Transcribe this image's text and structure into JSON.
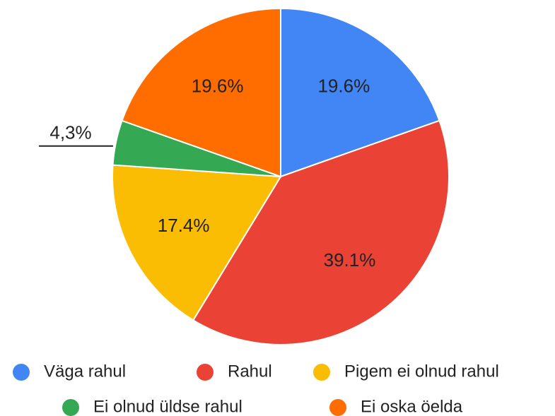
{
  "chart_data": {
    "type": "pie",
    "categories": [
      "Väga rahul",
      "Rahul",
      "Pigem ei olnud rahul",
      "Ei olnud üldse rahul",
      "Ei oska öelda"
    ],
    "values": [
      19.6,
      39.1,
      17.4,
      4.3,
      19.6
    ],
    "value_labels": [
      "19.6%",
      "39.1%",
      "17.4%",
      "4,3%",
      "19.6%"
    ],
    "colors": [
      "#4285f4",
      "#ea4335",
      "#fbbc04",
      "#34a853",
      "#ff6d01"
    ],
    "legend": "bottom"
  }
}
